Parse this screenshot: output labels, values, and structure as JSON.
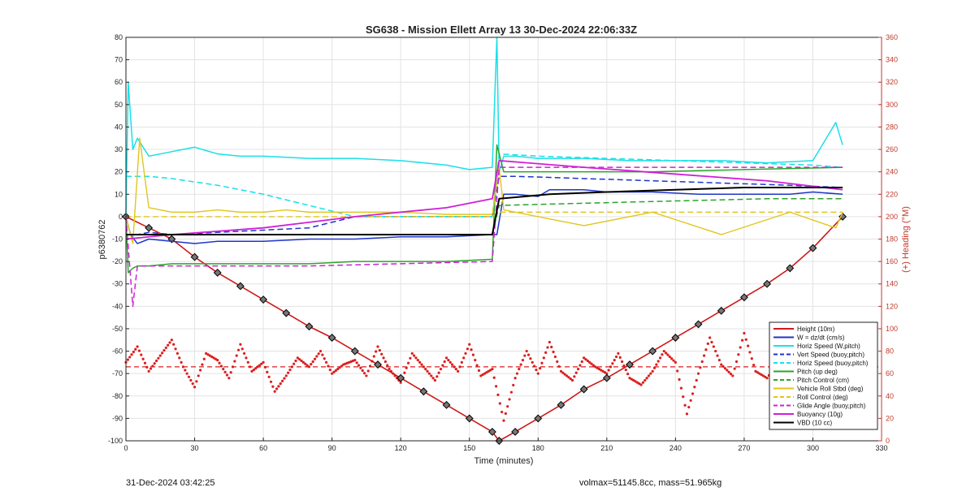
{
  "figure": {
    "title": "SG638 - Mission Ellett Array 13 30-Dec-2024 22:06:33Z",
    "footer_left": "31-Dec-2024 03:42:25",
    "footer_right": "volmax=51145.8cc, mass=51.965kg"
  },
  "chart_data": {
    "type": "line",
    "title": "SG638 - Mission Ellett Array 13 30-Dec-2024 22:06:33Z",
    "xlabel": "Time (minutes)",
    "ylabel": "p6380762",
    "y2label": "(+) Heading (°M)",
    "xlim": [
      0,
      330
    ],
    "ylim": [
      -100,
      80
    ],
    "y2lim": [
      0,
      360
    ],
    "xticks": [
      0,
      30,
      60,
      90,
      120,
      150,
      180,
      210,
      240,
      270,
      300,
      330
    ],
    "yticks": [
      -100,
      -90,
      -80,
      -70,
      -60,
      -50,
      -40,
      -30,
      -20,
      -10,
      0,
      10,
      20,
      30,
      40,
      50,
      60,
      70,
      80
    ],
    "y2ticks": [
      0,
      20,
      40,
      60,
      80,
      100,
      120,
      140,
      160,
      180,
      200,
      220,
      240,
      260,
      280,
      300,
      320,
      340,
      360
    ],
    "grid": true,
    "legend_position": "lower-right",
    "series": [
      {
        "name": "Height (10m)",
        "color": "#cc1a1a",
        "style": "solid",
        "width": 1.6,
        "markers": true,
        "x": [
          0,
          10,
          20,
          30,
          40,
          50,
          60,
          70,
          80,
          90,
          100,
          110,
          120,
          130,
          140,
          150,
          160,
          163,
          170,
          180,
          190,
          200,
          210,
          220,
          230,
          240,
          250,
          260,
          270,
          280,
          290,
          300,
          313
        ],
        "y": [
          0,
          -5,
          -10,
          -18,
          -25,
          -31,
          -37,
          -43,
          -49,
          -54,
          -60,
          -66,
          -72,
          -78,
          -84,
          -90,
          -96,
          -100,
          -96,
          -90,
          -84,
          -77,
          -72,
          -66,
          -60,
          -54,
          -48,
          -42,
          -36,
          -30,
          -23,
          -14,
          0
        ]
      },
      {
        "name": "W = dz/dt (cm/s)",
        "color": "#1f35c8",
        "style": "solid",
        "width": 1.5,
        "x": [
          0,
          2,
          5,
          10,
          20,
          30,
          40,
          60,
          80,
          100,
          120,
          140,
          160,
          162,
          165,
          170,
          180,
          185,
          190,
          200,
          210,
          230,
          250,
          270,
          290,
          300,
          313
        ],
        "y": [
          0,
          -8,
          -12,
          -10,
          -11,
          -12,
          -11,
          -11,
          -10,
          -10,
          -9,
          -9,
          -8,
          -8,
          10,
          10,
          9,
          12,
          12,
          12,
          11,
          11,
          10,
          10,
          10,
          11,
          10
        ]
      },
      {
        "name": "Horiz Speed (W,pitch)",
        "color": "#19e0e8",
        "style": "solid",
        "width": 1.5,
        "x": [
          0,
          1,
          3,
          5,
          10,
          20,
          30,
          40,
          50,
          60,
          80,
          100,
          120,
          140,
          150,
          160,
          162,
          163,
          165,
          170,
          180,
          200,
          220,
          240,
          260,
          280,
          300,
          310,
          313
        ],
        "y": [
          0,
          60,
          30,
          35,
          27,
          29,
          31,
          28,
          27,
          27,
          26,
          26,
          25,
          23,
          21,
          22,
          80,
          20,
          27,
          27,
          26,
          26,
          25,
          25,
          25,
          24,
          25,
          42,
          32
        ]
      },
      {
        "name": "Vert Speed (buoy,pitch)",
        "color": "#1f35c8",
        "style": "dashed",
        "width": 1.5,
        "x": [
          0,
          5,
          10,
          20,
          40,
          60,
          80,
          100,
          120,
          140,
          160,
          163,
          170,
          200,
          230,
          260,
          290,
          313
        ],
        "y": [
          -8,
          -8,
          -7,
          -8,
          -7,
          -6,
          -5,
          0,
          0,
          0,
          0,
          18,
          18,
          17,
          16,
          15,
          14,
          13
        ]
      },
      {
        "name": "Horiz Speed (buoy,pitch)",
        "color": "#19e0e8",
        "style": "dashed",
        "width": 1.5,
        "x": [
          0,
          10,
          20,
          40,
          60,
          80,
          100,
          120,
          140,
          160,
          163,
          180,
          210,
          240,
          270,
          300,
          313
        ],
        "y": [
          18,
          18,
          17,
          14,
          10,
          5,
          0,
          0,
          0,
          0,
          28,
          27,
          26,
          25,
          24,
          23,
          22
        ]
      },
      {
        "name": "Pitch (up deg)",
        "color": "#2aa52a",
        "style": "solid",
        "width": 1.5,
        "x": [
          0,
          1,
          3,
          5,
          10,
          20,
          40,
          60,
          80,
          100,
          120,
          140,
          160,
          162,
          165,
          170,
          190,
          230,
          270,
          313
        ],
        "y": [
          0,
          -25,
          -23,
          -22,
          -22,
          -21,
          -21,
          -21,
          -21,
          -20,
          -20,
          -20,
          -19,
          32,
          20,
          20,
          20,
          20,
          21,
          22
        ]
      },
      {
        "name": "Pitch Control (cm)",
        "color": "#2aa52a",
        "style": "dashed",
        "width": 1.5,
        "x": [
          0,
          160,
          163,
          200,
          240,
          280,
          313
        ],
        "y": [
          -8,
          -8,
          5,
          6,
          7,
          8,
          8
        ]
      },
      {
        "name": "Vehicle Roll Stbd (deg)",
        "color": "#e1c520",
        "style": "solid",
        "width": 1.4,
        "x": [
          0,
          3,
          6,
          10,
          20,
          30,
          40,
          50,
          60,
          70,
          80,
          100,
          120,
          140,
          160,
          163,
          165,
          170,
          200,
          230,
          260,
          290,
          310,
          313
        ],
        "y": [
          0,
          -12,
          35,
          4,
          2,
          2,
          3,
          2,
          2,
          3,
          2,
          2,
          2,
          1,
          1,
          22,
          3,
          2,
          -4,
          2,
          -8,
          2,
          -5,
          2
        ]
      },
      {
        "name": "Roll Control (deg)",
        "color": "#e1c520",
        "style": "dashed",
        "width": 1.4,
        "x": [
          0,
          160,
          163,
          313
        ],
        "y": [
          0,
          0,
          2,
          2
        ]
      },
      {
        "name": "Glide Angle (buoy,pitch)",
        "color": "#d01fd8",
        "style": "dashed",
        "width": 1.5,
        "x": [
          0,
          3,
          5,
          10,
          40,
          80,
          120,
          160,
          163,
          200,
          240,
          280,
          313
        ],
        "y": [
          0,
          -40,
          -22,
          -22,
          -22,
          -22,
          -21,
          -20,
          22,
          22,
          22,
          22,
          22
        ]
      },
      {
        "name": "Buoyancy (10g)",
        "color": "#d01fd8",
        "style": "solid",
        "width": 1.8,
        "x": [
          0,
          20,
          60,
          100,
          140,
          160,
          163,
          200,
          240,
          280,
          313
        ],
        "y": [
          -10,
          -8,
          -5,
          0,
          4,
          8,
          25,
          22,
          19,
          16,
          12
        ]
      },
      {
        "name": "VBD (10 cc)",
        "color": "#000000",
        "style": "solid",
        "width": 2.0,
        "x": [
          0,
          20,
          60,
          100,
          140,
          160,
          163,
          185,
          210,
          240,
          270,
          313
        ],
        "y": [
          -8,
          -8,
          -8,
          -8,
          -8,
          -8,
          8,
          10,
          11,
          12,
          13,
          13
        ]
      }
    ],
    "heading": {
      "axis": "right",
      "color": "#dc1e1e",
      "x": [
        0,
        5,
        10,
        15,
        20,
        25,
        30,
        35,
        40,
        45,
        50,
        55,
        60,
        65,
        70,
        75,
        80,
        85,
        90,
        95,
        100,
        105,
        110,
        115,
        120,
        125,
        130,
        135,
        140,
        145,
        150,
        155,
        160,
        165,
        170,
        175,
        180,
        185,
        190,
        195,
        200,
        205,
        210,
        215,
        220,
        225,
        230,
        235,
        240,
        245,
        250,
        255,
        260,
        265,
        270,
        275,
        280,
        285,
        290,
        295,
        300,
        305,
        310,
        313
      ],
      "y": [
        70,
        84,
        62,
        76,
        90,
        66,
        48,
        78,
        72,
        56,
        86,
        62,
        70,
        44,
        58,
        74,
        66,
        80,
        60,
        68,
        72,
        58,
        84,
        64,
        52,
        78,
        66,
        54,
        74,
        62,
        86,
        58,
        64,
        18,
        56,
        80,
        60,
        88,
        62,
        54,
        74,
        66,
        60,
        78,
        56,
        50,
        62,
        80,
        70,
        24,
        60,
        92,
        68,
        58,
        96,
        62,
        56,
        70,
        64,
        74,
        40,
        60,
        52,
        60
      ],
      "mean": 66
    }
  }
}
